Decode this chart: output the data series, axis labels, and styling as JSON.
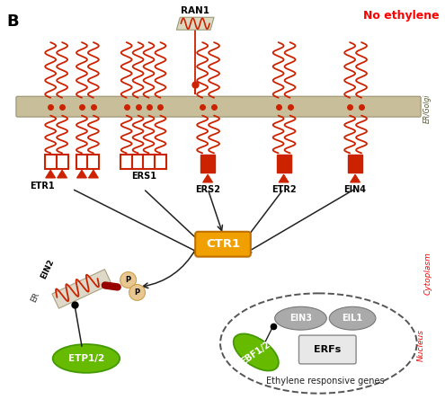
{
  "title_B": "B",
  "title_no_ethylene": "No ethylene",
  "membrane_color": "#c8bf9a",
  "membrane_edge": "#9a9070",
  "receptor_color": "#cc2200",
  "arrow_color": "#222222",
  "CTR1_color": "#f0a000",
  "CTR1_edge": "#c07000",
  "green_color": "#66bb00",
  "green_edge": "#449900",
  "gray_color": "#aaaaaa",
  "gray_edge": "#777777",
  "phospho_color": "#e8c890",
  "phospho_edge": "#c8a050",
  "dark_red": "#990000",
  "er_face": "#ddd8c8",
  "er_edge": "#aaa080",
  "erfs_face": "#e8e8e8",
  "erfs_edge": "#888888",
  "ran1_face": "#ddd8c0",
  "ran1_edge": "#999977",
  "labels": {
    "B": "B",
    "no_ethylene": "No ethylene",
    "RAN1": "RAN1",
    "ETR1": "ETR1",
    "ERS1": "ERS1",
    "ERS2": "ERS2",
    "ETR2": "ETR2",
    "EIN4": "EIN4",
    "CTR1": "CTR1",
    "EIN2": "EIN2",
    "ETP12": "ETP1/2",
    "ER": "ER",
    "EIN3": "EIN3",
    "EIL1": "EIL1",
    "EBF12": "EBF1/2",
    "ERFs": "ERFs",
    "ethylene_resp": "Ethylene responsive genes",
    "ER_Golgi": "ER/Golgi",
    "Cytoplasm": "Cytoplasm",
    "Nucleus": "Nucleus"
  },
  "figsize": [
    4.95,
    4.54
  ],
  "dpi": 100,
  "xlim": [
    0,
    495
  ],
  "ylim": [
    0,
    454
  ]
}
